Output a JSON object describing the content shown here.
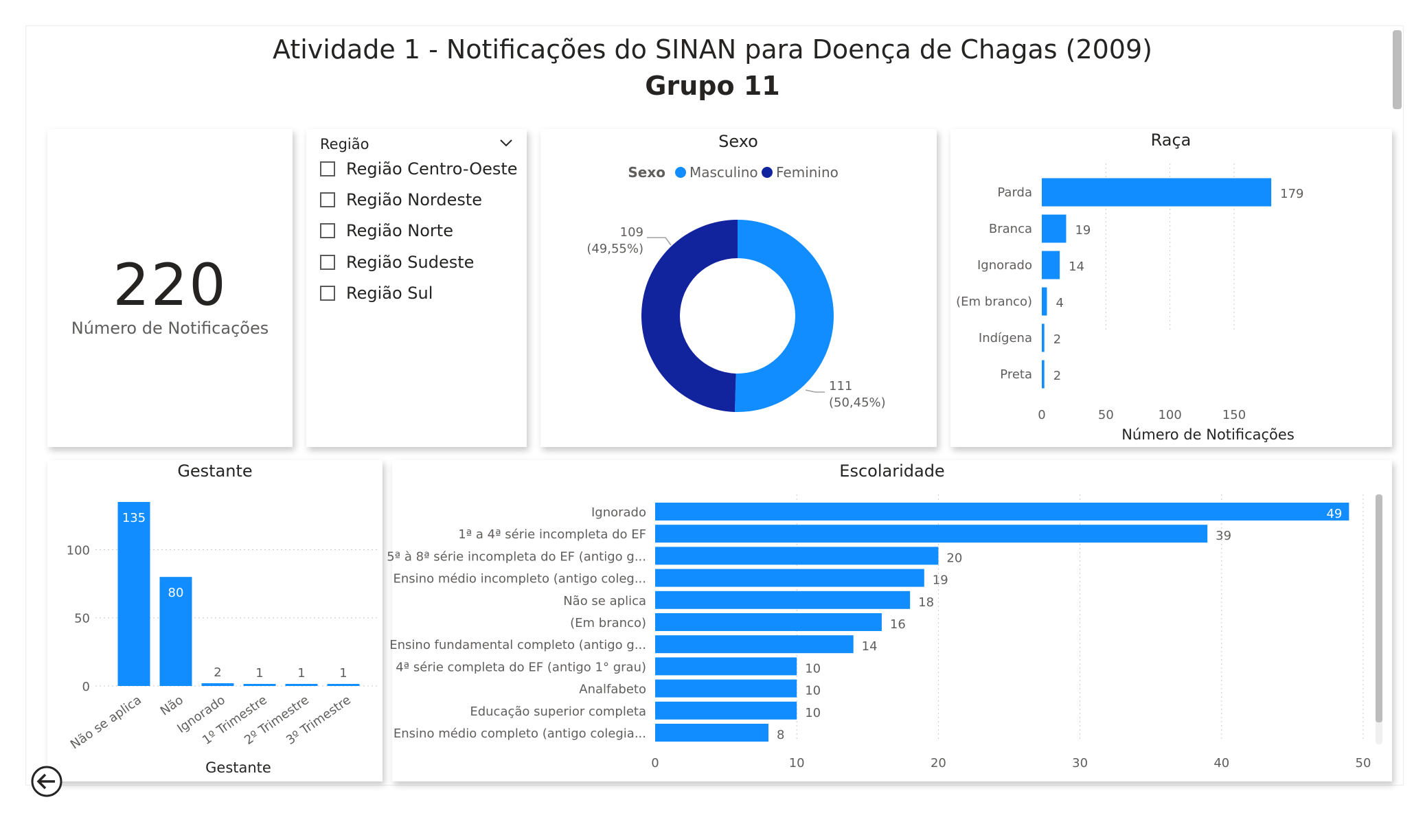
{
  "header": {
    "title": "Atividade 1 - Notificações do SINAN para Doença de Chagas (2009)",
    "subtitle": "Grupo 11"
  },
  "kpi": {
    "value": "220",
    "label": "Número de Notificações"
  },
  "slicer": {
    "title": "Região",
    "options": [
      "Região Centro-Oeste",
      "Região Nordeste",
      "Região Norte",
      "Região Sudeste",
      "Região Sul"
    ]
  },
  "icons": {
    "back": "back-arrow-icon",
    "dropdown": "chevron-down-icon"
  },
  "colors": {
    "light_blue": "#118DFF",
    "dark_blue": "#12239E"
  },
  "chart_data": [
    {
      "type": "pie",
      "title": "Sexo",
      "legend_title": "Sexo",
      "legend": "top",
      "categories": [
        "Masculino",
        "Feminino"
      ],
      "values": [
        111,
        109
      ],
      "labels": [
        "111",
        "109"
      ],
      "percents": [
        "(50,45%)",
        "(49,55%)"
      ]
    },
    {
      "type": "bar",
      "orientation": "horizontal",
      "title": "Raça",
      "xlabel": "Número de Notificações",
      "categories": [
        "Parda",
        "Branca",
        "Ignorado",
        "(Em branco)",
        "Indígena",
        "Preta"
      ],
      "values": [
        179,
        19,
        14,
        4,
        2,
        2
      ],
      "xlim": [
        0,
        180
      ],
      "xticks": [
        0,
        50,
        100,
        150
      ],
      "grid": true
    },
    {
      "type": "bar",
      "title": "Gestante",
      "xlabel": "Gestante",
      "categories": [
        "Não se aplica",
        "Não",
        "Ignorado",
        "1º Trimestre",
        "2º Trimestre",
        "3º Trimestre"
      ],
      "values": [
        135,
        80,
        2,
        1,
        1,
        1
      ],
      "ylim": [
        0,
        135
      ],
      "yticks": [
        0,
        50,
        100
      ],
      "grid": true
    },
    {
      "type": "bar",
      "orientation": "horizontal",
      "title": "Escolaridade",
      "categories": [
        "Ignorado",
        "1ª a 4ª série incompleta do EF",
        "5ª à 8ª série incompleta do EF (antigo g...",
        "Ensino médio incompleto (antigo coleg...",
        "Não se aplica",
        "(Em branco)",
        "Ensino fundamental completo (antigo g...",
        "4ª série completa do EF (antigo 1° grau)",
        "Analfabeto",
        "Educação superior completa",
        "Ensino médio completo (antigo colegia..."
      ],
      "values": [
        49,
        39,
        20,
        19,
        18,
        16,
        14,
        10,
        10,
        10,
        8
      ],
      "xlim": [
        0,
        50
      ],
      "xticks": [
        0,
        10,
        20,
        30,
        40,
        50
      ],
      "grid": true
    }
  ]
}
